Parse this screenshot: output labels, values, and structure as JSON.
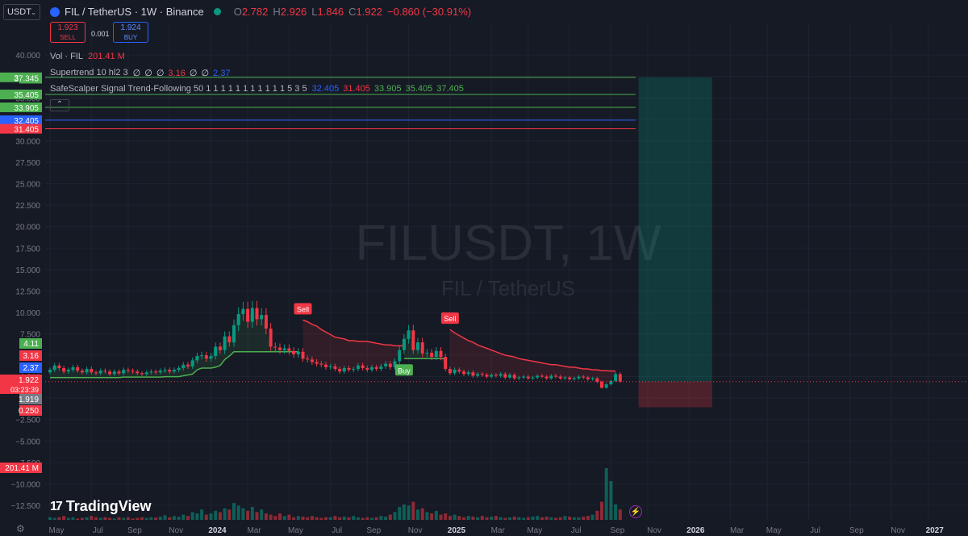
{
  "header": {
    "symbol_select": "USDT",
    "title": "FIL / TetherUS · 1W · Binance",
    "ohlc": [
      {
        "k": "O",
        "v": "2.782",
        "color": "#f23645"
      },
      {
        "k": "H",
        "v": "2.926",
        "color": "#f23645"
      },
      {
        "k": "L",
        "v": "1.846",
        "color": "#f23645"
      },
      {
        "k": "C",
        "v": "1.922",
        "color": "#f23645"
      },
      {
        "k": "",
        "v": "−0.860 (−30.91%)",
        "color": "#f23645"
      }
    ],
    "sell_price": "1.923",
    "sell_label": "SELL",
    "spread": "0.001",
    "buy_price": "1.924",
    "buy_label": "BUY"
  },
  "indicators": {
    "vol": {
      "name": "Vol · FIL",
      "value": "201.41 M"
    },
    "supertrend": {
      "name": "Supertrend 10 hl2 3",
      "values": [
        "∅",
        "∅",
        "∅",
        "3.16",
        "∅",
        "∅",
        "2.37"
      ],
      "colors": [
        "#d1d4dc",
        "#d1d4dc",
        "#d1d4dc",
        "#f23645",
        "#d1d4dc",
        "#d1d4dc",
        "#2962ff"
      ]
    },
    "safescalper": {
      "name": "SafeScalper Signal Trend-Following 50 1 1 1 1 1 1 1 1 1 1 1 5 3 5",
      "values": [
        "32.405",
        "31.405",
        "33.905",
        "35.405",
        "37.405"
      ],
      "colors": [
        "#2962ff",
        "#f23645",
        "#4caf50",
        "#4caf50",
        "#4caf50"
      ]
    }
  },
  "watermark": {
    "line1": "FILUSDT, 1W",
    "line2": "FIL / TetherUS"
  },
  "branding": {
    "logo_mark": "17",
    "logo_text": "TradingView"
  },
  "chart_data": {
    "type": "candlestick",
    "symbol": "FILUSDT",
    "interval": "1W",
    "y_axis_ticks": [
      "40.000",
      "37.500",
      "35.000",
      "32.500",
      "30.000",
      "27.500",
      "25.000",
      "22.500",
      "20.000",
      "17.500",
      "15.000",
      "12.500",
      "10.000",
      "7.500",
      "5.000",
      "2.500",
      "0.000",
      "−2.500",
      "−5.000",
      "−7.500",
      "−10.000",
      "−12.500"
    ],
    "y_tick_values": [
      40,
      37.5,
      35,
      32.5,
      30,
      27.5,
      25,
      22.5,
      20,
      17.5,
      15,
      12.5,
      10,
      7.5,
      5,
      2.5,
      0,
      -2.5,
      -5,
      -7.5,
      -10,
      -12.5
    ],
    "ylim": [
      -14.2,
      43.6
    ],
    "x_axis_ticks": [
      "May",
      "Jul",
      "Sep",
      "Nov",
      "2024",
      "Mar",
      "May",
      "Jul",
      "Sep",
      "Nov",
      "2025",
      "Mar",
      "May",
      "Jul",
      "Sep",
      "Nov",
      "2026",
      "Mar",
      "May",
      "Jul",
      "Sep",
      "Nov",
      "2027",
      "Mar"
    ],
    "x_tick_weeks": [
      0,
      9,
      17,
      26,
      35,
      43,
      52,
      61,
      69,
      78,
      87,
      96,
      104,
      113,
      122,
      130,
      139,
      148,
      156,
      165,
      174,
      183,
      191,
      200
    ],
    "x_tick_bold": [
      "2024",
      "2025",
      "2026",
      "2027"
    ],
    "horizontal_levels": [
      {
        "value": 37.405,
        "color": "#4caf50",
        "label": "37.405"
      },
      {
        "value": 35.405,
        "color": "#4caf50",
        "label": "35.405"
      },
      {
        "value": 33.905,
        "color": "#4caf50",
        "label": "33.905"
      },
      {
        "value": 32.405,
        "color": "#2962ff",
        "label": "32.405"
      },
      {
        "value": 31.405,
        "color": "#f23645",
        "label": "31.405"
      }
    ],
    "price_labels": [
      {
        "value": 37.345,
        "color": "#4caf50",
        "label": "37.345"
      },
      {
        "value": 4.11,
        "color": "#4caf50",
        "label": "4.11"
      },
      {
        "value": 3.16,
        "color": "#f23645",
        "label": "3.16"
      },
      {
        "value": 2.37,
        "color": "#2962ff",
        "label": "2.37"
      },
      {
        "value": 1.922,
        "color": "#f23645",
        "label": "1.922",
        "sub": "03:23:39"
      },
      {
        "value": 1.919,
        "color": "#787b86",
        "label": "1.919"
      },
      {
        "value": 0.25,
        "color": "#f23645",
        "label": "0.250"
      }
    ],
    "volume_label": {
      "value": "201.41 M",
      "color": "#f23645"
    },
    "last_price": 1.922,
    "candles_close": [
      3.3,
      3.8,
      3.5,
      3.1,
      3.3,
      3.6,
      3.2,
      3.0,
      3.4,
      3.0,
      2.9,
      3.2,
      3.1,
      2.8,
      3.1,
      2.9,
      3.3,
      3.2,
      3.1,
      2.9,
      2.8,
      3.0,
      3.1,
      3.0,
      3.2,
      3.3,
      3.1,
      3.3,
      3.5,
      3.9,
      3.7,
      4.4,
      4.9,
      5.0,
      4.6,
      4.9,
      6.0,
      5.6,
      7.2,
      6.5,
      8.5,
      9.8,
      10.4,
      8.9,
      10.5,
      9.2,
      9.7,
      8.1,
      6.0,
      5.9,
      5.6,
      5.8,
      5.5,
      5.1,
      5.4,
      4.6,
      4.5,
      4.2,
      4.0,
      3.9,
      3.6,
      3.7,
      3.4,
      3.1,
      3.5,
      3.3,
      3.4,
      3.8,
      3.5,
      3.3,
      3.6,
      3.4,
      3.7,
      4.0,
      3.6,
      4.3,
      5.6,
      6.9,
      7.9,
      5.6,
      6.5,
      5.2,
      5.3,
      4.8,
      5.5,
      4.8,
      3.4,
      2.9,
      3.3,
      3.1,
      2.8,
      3.0,
      2.6,
      2.8,
      2.7,
      2.5,
      2.7,
      2.6,
      2.8,
      2.4,
      2.7,
      2.3,
      2.4,
      2.5,
      2.3,
      2.4,
      2.6,
      2.5,
      2.3,
      2.6,
      2.5,
      2.3,
      2.4,
      2.2,
      2.3,
      2.5,
      2.4,
      2.2,
      2.3,
      1.9,
      1.2,
      1.6,
      2.0,
      2.8,
      1.922
    ],
    "supertrend_up": {
      "start": 0,
      "end": 55,
      "values": [
        2.4,
        2.4,
        2.4,
        2.4,
        2.4,
        2.4,
        2.4,
        2.4,
        2.4,
        2.4,
        2.4,
        2.4,
        2.4,
        2.4,
        2.4,
        2.4,
        2.45,
        2.45,
        2.45,
        2.45,
        2.45,
        2.45,
        2.45,
        2.45,
        2.45,
        2.5,
        2.5,
        2.5,
        2.5,
        2.6,
        2.7,
        2.8,
        3.3,
        3.5,
        3.5,
        3.5,
        3.6,
        3.8,
        4.5,
        4.9,
        5.4,
        5.4,
        5.4,
        5.4,
        5.4,
        5.4,
        5.4,
        5.4,
        5.4,
        5.4,
        5.4,
        5.4,
        5.4,
        5.4,
        5.4
      ]
    },
    "supertrend_up2": {
      "start": 77,
      "end": 87,
      "values": [
        4.6,
        4.6,
        4.6,
        4.6,
        4.6,
        4.6,
        4.6,
        4.6,
        4.6,
        4.6
      ]
    },
    "supertrend_down": [
      {
        "start": 55,
        "end": 78,
        "values": [
          9.1,
          8.9,
          8.6,
          8.4,
          8.0,
          7.7,
          7.4,
          7.1,
          7.0,
          6.9,
          6.7,
          6.7,
          6.6,
          6.6,
          6.6,
          6.5,
          6.4,
          6.3,
          6.2,
          6.2,
          6.1,
          6.1,
          6.1
        ]
      },
      {
        "start": 87,
        "end": 124,
        "values": [
          8.0,
          7.6,
          7.3,
          7.0,
          6.7,
          6.5,
          6.2,
          6.0,
          5.8,
          5.6,
          5.4,
          5.2,
          5.0,
          4.9,
          4.8,
          4.6,
          4.5,
          4.4,
          4.3,
          4.2,
          4.1,
          4.0,
          3.9,
          3.9,
          3.8,
          3.7,
          3.6,
          3.6,
          3.5,
          3.4,
          3.4,
          3.3,
          3.3,
          3.2,
          3.2,
          3.16,
          3.16
        ]
      }
    ],
    "signals": [
      {
        "type": "sell",
        "label": "Sell",
        "week": 55
      },
      {
        "type": "buy",
        "label": "Buy",
        "week": 77
      },
      {
        "type": "sell",
        "label": "Sell",
        "week": 87
      }
    ],
    "volume_bars": [
      2,
      1.5,
      2,
      3,
      1.5,
      2,
      1,
      1.5,
      2,
      3,
      2,
      1.5,
      2,
      1.5,
      1,
      2,
      1.5,
      2,
      1,
      1.5,
      2,
      1.5,
      2,
      1.8,
      2.5,
      3.5,
      2,
      3,
      2.5,
      4,
      3,
      6,
      5,
      8,
      4,
      5,
      7,
      6,
      9,
      8,
      13,
      11,
      9,
      7,
      10,
      6,
      8,
      5,
      4,
      3,
      5,
      3,
      4,
      2,
      3,
      2.5,
      2,
      3,
      2,
      1.5,
      2,
      2,
      3,
      2,
      2.5,
      2,
      3,
      2,
      1.5,
      2,
      1.5,
      2,
      3,
      2.5,
      4,
      6,
      10,
      12,
      11,
      14,
      8,
      9,
      6,
      5,
      7,
      4,
      5,
      3,
      4,
      3,
      2,
      3,
      2.5,
      2,
      3,
      2,
      2.5,
      3,
      2,
      1.5,
      2,
      2.5,
      2,
      1.5,
      2,
      2.5,
      3,
      2,
      2.5,
      2,
      1.5,
      2,
      3,
      2.5,
      2,
      2,
      2.5,
      3,
      4,
      7,
      14,
      40,
      30,
      12,
      8
    ],
    "position_box": {
      "entry": 1.922,
      "target": 37.405,
      "stop": 0.25,
      "from_week": 128,
      "to_week": 144
    }
  }
}
